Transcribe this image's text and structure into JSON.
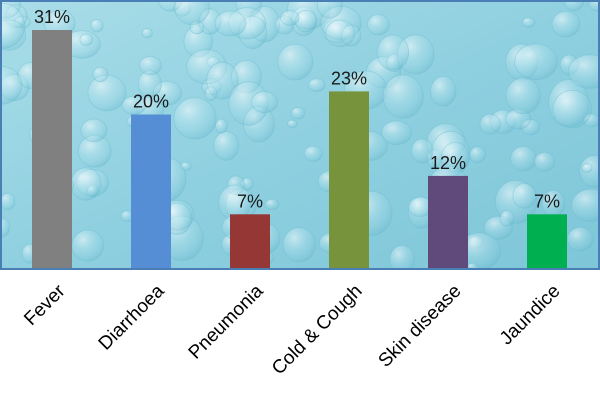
{
  "chart_data": {
    "type": "bar",
    "categories": [
      "Fever",
      "Diarrhoea",
      "Pneumonia",
      "Cold & Cough",
      "Skin disease",
      "Jaundice"
    ],
    "values": [
      31,
      20,
      7,
      23,
      12,
      7
    ],
    "value_labels": [
      "31%",
      "20%",
      "7%",
      "23%",
      "12%",
      "7%"
    ],
    "bar_colors": [
      "#808080",
      "#558ed5",
      "#953735",
      "#77933c",
      "#604a7b",
      "#00b050"
    ],
    "title": "",
    "xlabel": "",
    "ylabel": "",
    "ylim": [
      0,
      31
    ],
    "grid": false,
    "legend": "none",
    "background": "water-drops"
  }
}
